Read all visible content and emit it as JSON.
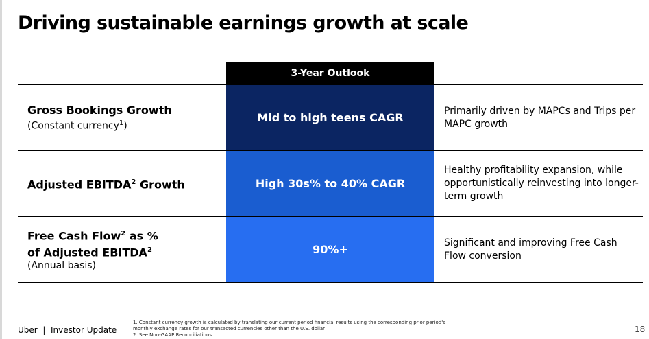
{
  "title": "Driving sustainable earnings growth at scale",
  "table": {
    "header": "3-Year Outlook",
    "colors": [
      "#0b2562",
      "#1a5dd0",
      "#276ef1"
    ],
    "rows": [
      {
        "label": "Gross Bookings Growth",
        "sub": "(Constant currency",
        "sub_sup": "1",
        "sub_end": ")",
        "outlook": "Mid to high teens CAGR",
        "desc": "Primarily driven by MAPCs and Trips per MAPC growth"
      },
      {
        "label": "Adjusted EBITDA",
        "label_sup": "2",
        "label_end": " Growth",
        "outlook": "High 30s% to 40% CAGR",
        "desc": "Healthy profitability expansion, while opportunistically reinvesting into longer-term growth"
      },
      {
        "label1": "Free Cash Flow",
        "label1_sup": "2",
        "label1_end": " as %",
        "label2": "of Adjusted EBITDA",
        "label2_sup": "2",
        "sub": "(Annual basis)",
        "outlook": "90%+",
        "desc": "Significant and improving Free Cash Flow conversion"
      }
    ]
  },
  "footer": {
    "brand": "Uber  |  Investor Update",
    "note1": "1. Constant currency growth is calculated by translating our current period financial results using the corresponding prior period's monthly exchange rates for our transacted currencies other than the U.S. dollar",
    "note2": "2. See Non-GAAP Reconciliations",
    "page": "18"
  }
}
